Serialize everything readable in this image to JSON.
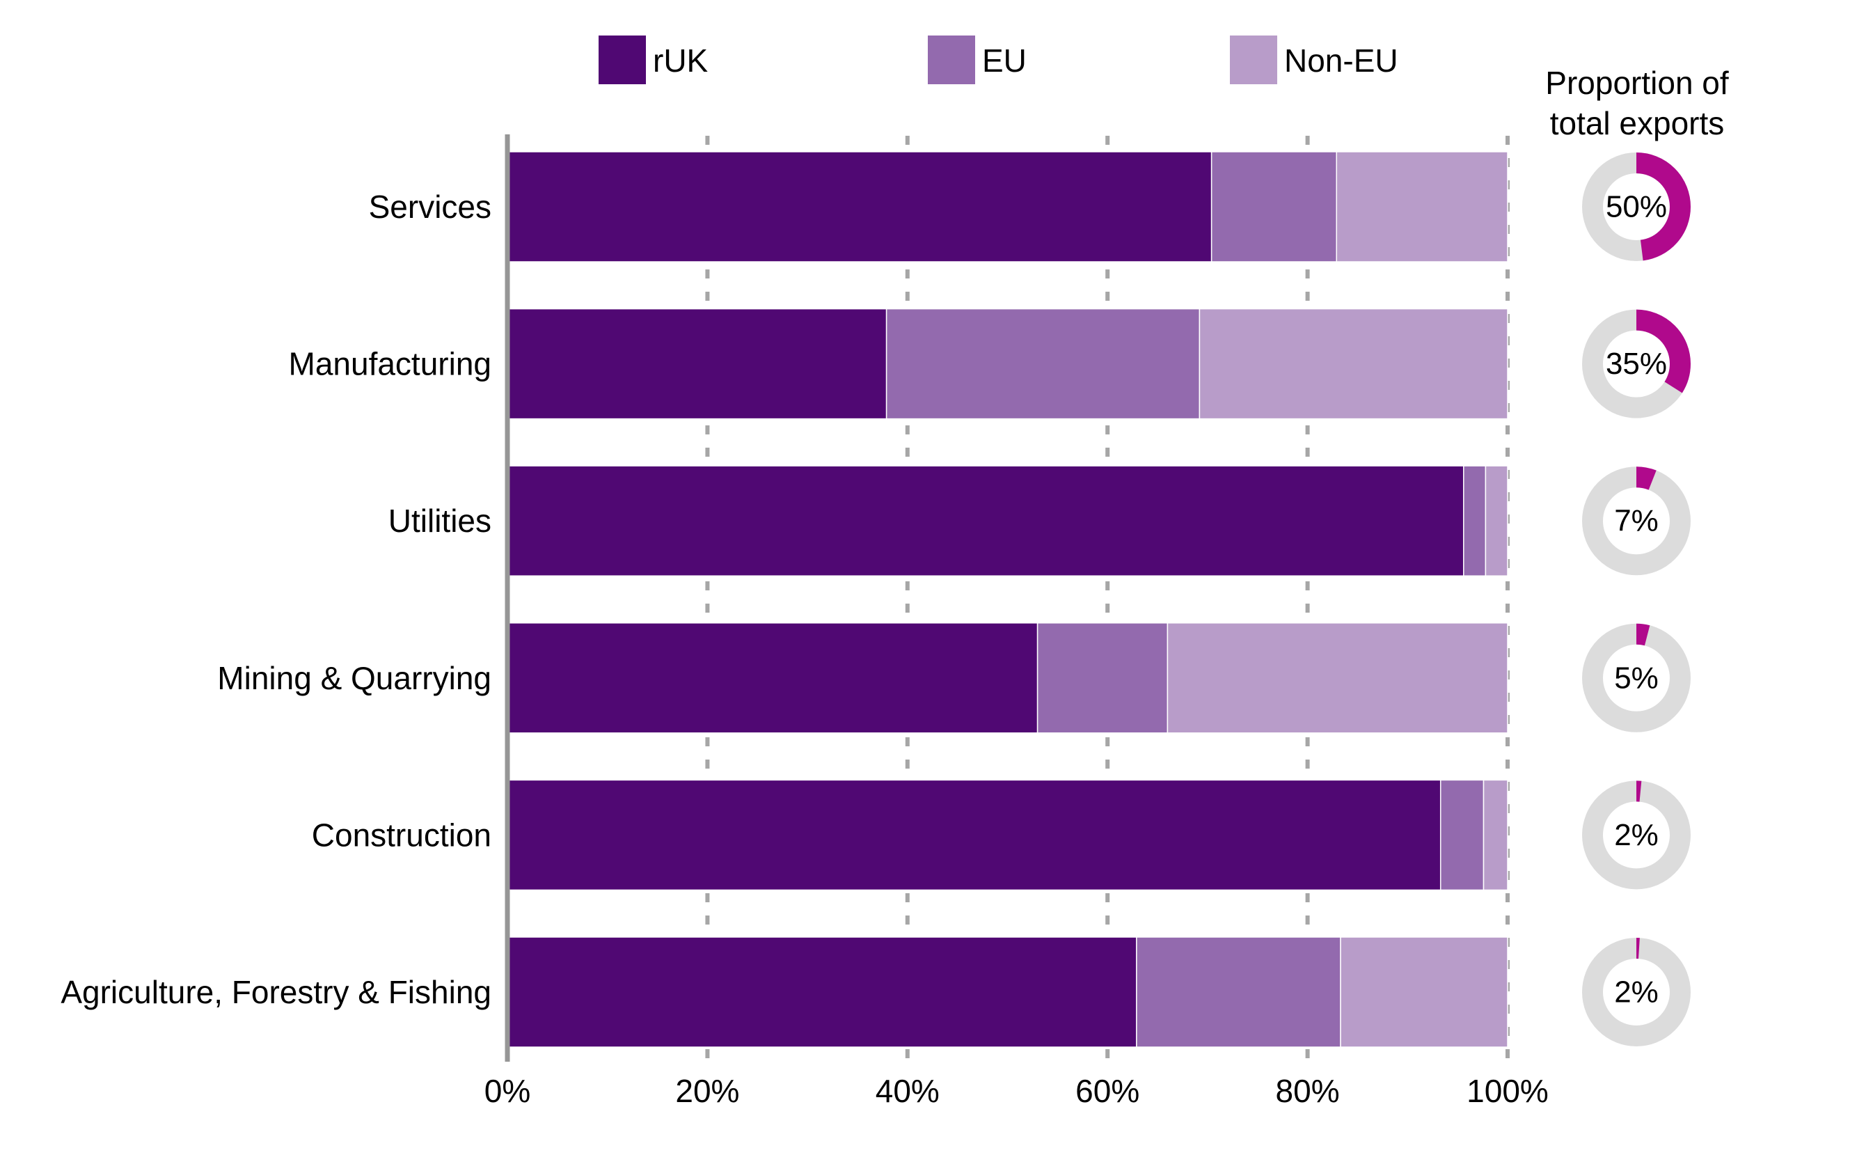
{
  "chart_data": {
    "type": "bar",
    "orientation": "horizontal",
    "stacked": true,
    "categories": [
      "Services",
      "Manufacturing",
      "Utilities",
      "Mining & Quarrying",
      "Construction",
      "Agriculture, Forestry & Fishing"
    ],
    "series": [
      {
        "name": "rUK",
        "color": "#500873",
        "values": [
          70.4,
          37.9,
          95.6,
          53.0,
          93.3,
          62.9
        ]
      },
      {
        "name": "EU",
        "color": "#936aae",
        "values": [
          12.5,
          31.3,
          2.2,
          13.0,
          4.3,
          20.4
        ]
      },
      {
        "name": "Non-EU",
        "color": "#b89cc9",
        "values": [
          17.1,
          30.8,
          2.2,
          34.0,
          2.4,
          16.7
        ]
      }
    ],
    "x_ticks": [
      "0%",
      "20%",
      "40%",
      "60%",
      "80%",
      "100%"
    ],
    "xlim": [
      0,
      100
    ],
    "grid": "vertical dashed",
    "legend_position": "top",
    "side_panel": {
      "title_lines": [
        "Proportion of",
        "total exports"
      ],
      "type": "donut",
      "track_color": "#dcdcdc",
      "fill_color": "#b0098c",
      "values": [
        50,
        35,
        7,
        5,
        2,
        2
      ],
      "fill_fraction": [
        0.48,
        0.34,
        0.06,
        0.04,
        0.015,
        0.01
      ],
      "labels": [
        "50%",
        "35%",
        "7%",
        "5%",
        "2%",
        "2%"
      ]
    }
  }
}
